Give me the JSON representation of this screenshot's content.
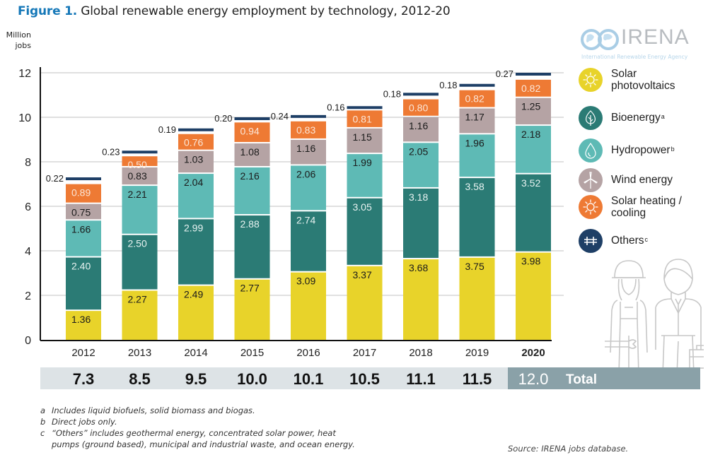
{
  "title": {
    "prefix": "Figure 1.",
    "text": "Global renewable energy employment by technology, 2012-20"
  },
  "logo": {
    "name": "IRENA",
    "subtitle": "International Renewable Energy Agency",
    "icon": "globe-infinity-logo-icon"
  },
  "chart_data": {
    "type": "bar",
    "stacked": true,
    "title": "Global renewable energy employment by technology, 2012-20",
    "ylabel": "Million jobs",
    "xlabel": "",
    "ylim": [
      0,
      12
    ],
    "yticks": [
      0,
      2,
      4,
      6,
      8,
      10,
      12
    ],
    "ytick_labels": [
      "0",
      "2",
      "4",
      "6",
      "8",
      "10",
      "12"
    ],
    "grid": true,
    "legend_position": "right",
    "categories": [
      "2012",
      "2013",
      "2014",
      "2015",
      "2016",
      "2017",
      "2018",
      "2019",
      "2020"
    ],
    "highlight_category": "2020",
    "series": [
      {
        "name": "Solar photovoltaics",
        "key": "solar_pv",
        "color": "#e8d32a",
        "label_color": "#1b1b1b",
        "values": [
          1.36,
          2.27,
          2.49,
          2.77,
          3.09,
          3.37,
          3.68,
          3.75,
          3.98
        ],
        "labels": [
          "1.36",
          "2.27",
          "2.49",
          "2.77",
          "3.09",
          "3.37",
          "3.68",
          "3.75",
          "3.98"
        ]
      },
      {
        "name": "Bioenergy",
        "key": "bioenergy",
        "color": "#2b7b75",
        "label_color": "#e8f3f1",
        "values": [
          2.4,
          2.5,
          2.99,
          2.88,
          2.74,
          3.05,
          3.18,
          3.58,
          3.52
        ],
        "labels": [
          "2.40",
          "2.50",
          "2.99",
          "2.88",
          "2.74",
          "3.05",
          "3.18",
          "3.58",
          "3.52"
        ]
      },
      {
        "name": "Hydropower",
        "key": "hydropower",
        "color": "#5ebab5",
        "label_color": "#1b1b1b",
        "values": [
          1.66,
          2.21,
          2.04,
          2.16,
          2.06,
          1.99,
          2.05,
          1.96,
          2.18
        ],
        "labels": [
          "1.66",
          "2.21",
          "2.04",
          "2.16",
          "2.06",
          "1.99",
          "2.05",
          "1.96",
          "2.18"
        ]
      },
      {
        "name": "Wind energy",
        "key": "wind",
        "color": "#b5a3a4",
        "label_color": "#1b1b1b",
        "values": [
          0.75,
          0.83,
          1.03,
          1.08,
          1.16,
          1.15,
          1.16,
          1.17,
          1.25
        ],
        "labels": [
          "0.75",
          "0.83",
          "1.03",
          "1.08",
          "1.16",
          "1.15",
          "1.16",
          "1.17",
          "1.25"
        ]
      },
      {
        "name": "Solar heating / cooling",
        "key": "solar_heating",
        "color": "#ee7a34",
        "label_color": "#fbe6d8",
        "values": [
          0.89,
          0.5,
          0.76,
          0.94,
          0.83,
          0.81,
          0.8,
          0.82,
          0.82
        ],
        "labels": [
          "0.89",
          "0.50",
          "0.76",
          "0.94",
          "0.83",
          "0.81",
          "0.80",
          "0.82",
          "0.82"
        ]
      },
      {
        "name": "Others",
        "key": "others",
        "color": "#1e3f66",
        "label_color": "#1b1b1b",
        "values": [
          0.22,
          0.23,
          0.19,
          0.2,
          0.24,
          0.16,
          0.18,
          0.18,
          0.27
        ],
        "labels": [
          "0.22",
          "0.23",
          "0.19",
          "0.20",
          "0.24",
          "0.16",
          "0.18",
          "0.18",
          "0.27"
        ]
      }
    ],
    "totals": [
      7.3,
      8.5,
      9.5,
      10.0,
      10.1,
      10.5,
      11.1,
      11.5,
      12.0
    ],
    "total_labels": [
      "7.3",
      "8.5",
      "9.5",
      "10.0",
      "10.1",
      "10.5",
      "11.1",
      "11.5",
      "12.0"
    ],
    "total_row_label": "Total"
  },
  "legend": [
    {
      "label_lines": [
        "Solar",
        "photovoltaics"
      ],
      "sup": "",
      "icon": "sun-icon",
      "color": "#e8d32a"
    },
    {
      "label_lines": [
        "Bioenergy"
      ],
      "sup": "a",
      "icon": "leaf-icon",
      "color": "#2b7b75"
    },
    {
      "label_lines": [
        "Hydropower"
      ],
      "sup": "b",
      "icon": "water-drop-icon",
      "color": "#5ebab5"
    },
    {
      "label_lines": [
        "Wind energy"
      ],
      "sup": "",
      "icon": "wind-turbine-icon",
      "color": "#b5a3a4"
    },
    {
      "label_lines": [
        "Solar heating /",
        "cooling"
      ],
      "sup": "",
      "icon": "sun-icon",
      "color": "#ee7a34"
    },
    {
      "label_lines": [
        "Others"
      ],
      "sup": "c",
      "icon": "plus-cross-icon",
      "color": "#1e3f66"
    }
  ],
  "ylabel_lines": [
    "Million",
    "jobs"
  ],
  "notes": [
    {
      "key": "a",
      "text": "Includes liquid biofuels, solid biomass and biogas."
    },
    {
      "key": "b",
      "text": "Direct jobs only."
    },
    {
      "key": "c",
      "text": "“Others” includes geothermal energy, concentrated solar power, heat pumps (ground based), municipal and industrial waste, and ocean energy."
    }
  ],
  "source": "Source: IRENA jobs database.",
  "illustration": "workers-illustration"
}
